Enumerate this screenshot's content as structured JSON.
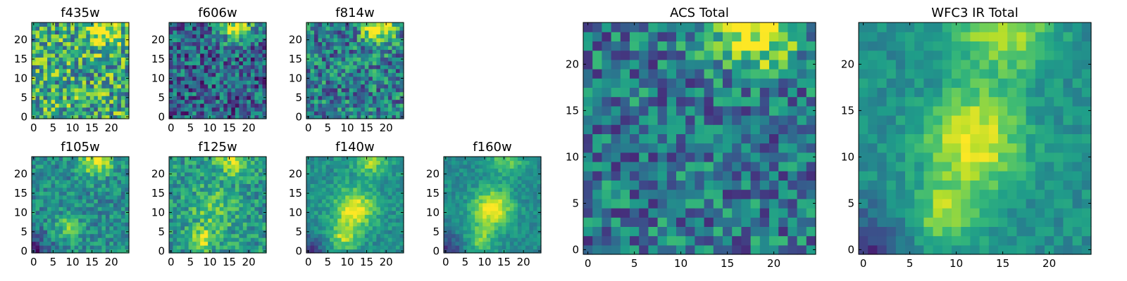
{
  "figure": {
    "colormap": "viridis",
    "colormap_stops": [
      "#440154",
      "#482777",
      "#3e4989",
      "#31688e",
      "#26828e",
      "#1f9e89",
      "#35b779",
      "#6ece58",
      "#b5de2b",
      "#fde725"
    ]
  },
  "chart_data": [
    {
      "type": "heatmap",
      "title": "f435w",
      "grid_size": 25,
      "x_ticks": [
        0,
        5,
        10,
        15,
        20
      ],
      "y_ticks": [
        0,
        5,
        10,
        15,
        20
      ],
      "xlim": [
        0,
        24
      ],
      "ylim": [
        0,
        24
      ],
      "pattern": "noisy, fairly uniform mid-high intensity; bright region along top right edge",
      "bright_spots": [
        {
          "x": 18,
          "y": 23,
          "sigma": 3,
          "amp": 0.45
        }
      ],
      "base_level": 0.6,
      "noise_level": 0.35
    },
    {
      "type": "heatmap",
      "title": "f606w",
      "grid_size": 25,
      "x_ticks": [
        0,
        5,
        10,
        15,
        20
      ],
      "y_ticks": [
        0,
        5,
        10,
        15,
        20
      ],
      "xlim": [
        0,
        24
      ],
      "ylim": [
        0,
        24
      ],
      "pattern": "noisy low-mid intensity; bright band along top right",
      "bright_spots": [
        {
          "x": 17,
          "y": 23.5,
          "sigma": 2.8,
          "amp": 0.65
        }
      ],
      "base_level": 0.32,
      "noise_level": 0.3
    },
    {
      "type": "heatmap",
      "title": "f814w",
      "grid_size": 25,
      "x_ticks": [
        0,
        5,
        10,
        15,
        20
      ],
      "y_ticks": [
        0,
        5,
        10,
        15,
        20
      ],
      "xlim": [
        0,
        24
      ],
      "ylim": [
        0,
        24
      ],
      "pattern": "noisy mid intensity; bright band along top right",
      "bright_spots": [
        {
          "x": 18,
          "y": 23.5,
          "sigma": 3,
          "amp": 0.6
        }
      ],
      "base_level": 0.42,
      "noise_level": 0.3
    },
    {
      "type": "heatmap",
      "title": "f105w",
      "grid_size": 25,
      "x_ticks": [
        0,
        5,
        10,
        15,
        20
      ],
      "y_ticks": [
        0,
        5,
        10,
        15,
        20
      ],
      "xlim": [
        0,
        24
      ],
      "ylim": [
        0,
        24
      ],
      "pattern": "mid intensity with bright top edge and faint central blob",
      "bright_spots": [
        {
          "x": 16,
          "y": 24,
          "sigma": 3,
          "amp": 0.5
        },
        {
          "x": 9,
          "y": 6,
          "sigma": 2.5,
          "amp": 0.25
        }
      ],
      "base_level": 0.48,
      "noise_level": 0.18
    },
    {
      "type": "heatmap",
      "title": "f125w",
      "grid_size": 25,
      "x_ticks": [
        0,
        5,
        10,
        15,
        20
      ],
      "y_ticks": [
        0,
        5,
        10,
        15,
        20
      ],
      "xlim": [
        0,
        24
      ],
      "ylim": [
        0,
        24
      ],
      "pattern": "mid-high intensity; bright top edge, central blob and bright spot near lower center",
      "bright_spots": [
        {
          "x": 16,
          "y": 24,
          "sigma": 3,
          "amp": 0.4
        },
        {
          "x": 11,
          "y": 11,
          "sigma": 4,
          "amp": 0.25
        },
        {
          "x": 8,
          "y": 3,
          "sigma": 2,
          "amp": 0.4
        }
      ],
      "base_level": 0.52,
      "noise_level": 0.2
    },
    {
      "type": "heatmap",
      "title": "f140w",
      "grid_size": 25,
      "x_ticks": [
        0,
        5,
        10,
        15,
        20
      ],
      "y_ticks": [
        0,
        5,
        10,
        15,
        20
      ],
      "xlim": [
        0,
        24
      ],
      "ylim": [
        0,
        24
      ],
      "pattern": "smooth; bright central source near (12,11), bright top edge, dark lower corners",
      "bright_spots": [
        {
          "x": 12,
          "y": 11,
          "sigma": 3.5,
          "amp": 0.5
        },
        {
          "x": 9,
          "y": 4,
          "sigma": 2.5,
          "amp": 0.35
        },
        {
          "x": 16,
          "y": 24,
          "sigma": 3,
          "amp": 0.35
        }
      ],
      "base_level": 0.5,
      "noise_level": 0.12
    },
    {
      "type": "heatmap",
      "title": "f160w",
      "grid_size": 25,
      "x_ticks": [
        0,
        5,
        10,
        15,
        20
      ],
      "y_ticks": [
        0,
        5,
        10,
        15,
        20
      ],
      "xlim": [
        0,
        24
      ],
      "ylim": [
        0,
        24
      ],
      "pattern": "smooth; bright central source near (12,11), dark lower left corner",
      "bright_spots": [
        {
          "x": 12,
          "y": 11,
          "sigma": 3.5,
          "amp": 0.55
        },
        {
          "x": 9,
          "y": 3,
          "sigma": 2.5,
          "amp": 0.3
        },
        {
          "x": 16,
          "y": 24,
          "sigma": 3,
          "amp": 0.3
        }
      ],
      "base_level": 0.48,
      "noise_level": 0.1
    },
    {
      "type": "heatmap",
      "title": "ACS Total",
      "grid_size": 25,
      "x_ticks": [
        0,
        5,
        10,
        15,
        20
      ],
      "y_ticks": [
        0,
        5,
        10,
        15,
        20
      ],
      "xlim": [
        0,
        24
      ],
      "ylim": [
        0,
        24
      ],
      "pattern": "noisy mid intensity; strong bright band along top right (x 12-24, y 22-24)",
      "bright_spots": [
        {
          "x": 18,
          "y": 24,
          "sigma": 3.2,
          "amp": 0.65
        }
      ],
      "base_level": 0.4,
      "noise_level": 0.28
    },
    {
      "type": "heatmap",
      "title": "WFC3 IR Total",
      "grid_size": 25,
      "x_ticks": [
        0,
        5,
        10,
        15,
        20
      ],
      "y_ticks": [
        0,
        5,
        10,
        15,
        20
      ],
      "xlim": [
        0,
        24
      ],
      "ylim": [
        0,
        24
      ],
      "pattern": "smooth; bright core near (12,12) and (9,4), bright top edge, dark lower left corner",
      "bright_spots": [
        {
          "x": 12,
          "y": 12,
          "sigma": 3.5,
          "amp": 0.5
        },
        {
          "x": 9,
          "y": 4,
          "sigma": 2.5,
          "amp": 0.35
        },
        {
          "x": 15,
          "y": 24,
          "sigma": 3.5,
          "amp": 0.4
        }
      ],
      "base_level": 0.5,
      "noise_level": 0.1
    }
  ]
}
